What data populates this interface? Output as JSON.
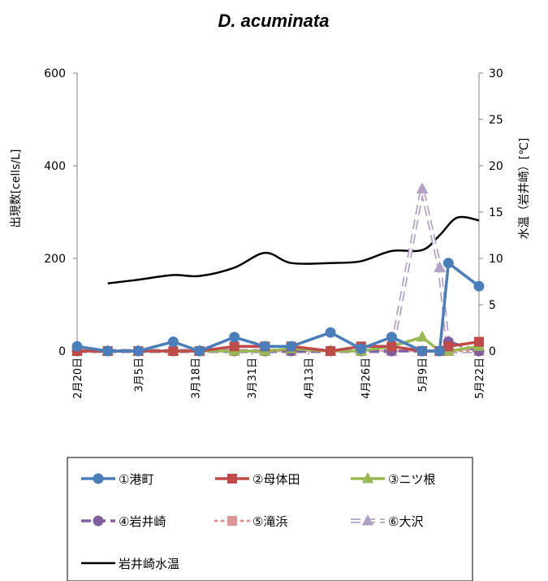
{
  "chart_data": {
    "type": "line",
    "title": "D. acuminata",
    "ylabel": "出現数[cells/L]",
    "y2label": "水温（岩井崎）[℃]",
    "ylim": [
      0,
      600
    ],
    "y2lim": [
      0,
      30
    ],
    "yticks": [
      0,
      200,
      400,
      600
    ],
    "y2ticks": [
      0,
      5,
      10,
      15,
      20,
      25,
      30
    ],
    "x_ticks": [
      {
        "label": "2月20日",
        "date": "2024-02-20"
      },
      {
        "label": "3月5日",
        "date": "2024-03-05"
      },
      {
        "label": "3月18日",
        "date": "2024-03-18"
      },
      {
        "label": "3月31日",
        "date": "2024-03-31"
      },
      {
        "label": "4月13日",
        "date": "2024-04-13"
      },
      {
        "label": "4月26日",
        "date": "2024-04-26"
      },
      {
        "label": "5月9日",
        "date": "2024-05-09"
      },
      {
        "label": "5月22日",
        "date": "2024-05-22"
      }
    ],
    "xlim": [
      "2024-02-20",
      "2024-05-22"
    ],
    "legend_position": "bottom",
    "series": [
      {
        "name": "①港町",
        "axis": "left",
        "color": "#4a7ebb",
        "marker": "circle",
        "dash": "solid",
        "width": 3.5,
        "points": [
          {
            "x": "2024-02-20",
            "y": 10
          },
          {
            "x": "2024-02-27",
            "y": 0
          },
          {
            "x": "2024-03-05",
            "y": 0
          },
          {
            "x": "2024-03-13",
            "y": 20
          },
          {
            "x": "2024-03-19",
            "y": 0
          },
          {
            "x": "2024-03-27",
            "y": 30
          },
          {
            "x": "2024-04-03",
            "y": 10
          },
          {
            "x": "2024-04-09",
            "y": 10
          },
          {
            "x": "2024-04-18",
            "y": 40
          },
          {
            "x": "2024-04-25",
            "y": 5
          },
          {
            "x": "2024-05-02",
            "y": 30
          },
          {
            "x": "2024-05-09",
            "y": 0
          },
          {
            "x": "2024-05-13",
            "y": 0
          },
          {
            "x": "2024-05-15",
            "y": 190
          },
          {
            "x": "2024-05-22",
            "y": 140
          }
        ]
      },
      {
        "name": "②母体田",
        "axis": "left",
        "color": "#be4b48",
        "marker": "square",
        "dash": "solid",
        "width": 3.5,
        "points": [
          {
            "x": "2024-02-20",
            "y": 0
          },
          {
            "x": "2024-02-27",
            "y": 0
          },
          {
            "x": "2024-03-05",
            "y": 0
          },
          {
            "x": "2024-03-13",
            "y": 0
          },
          {
            "x": "2024-03-19",
            "y": 0
          },
          {
            "x": "2024-03-27",
            "y": 10
          },
          {
            "x": "2024-04-03",
            "y": 10
          },
          {
            "x": "2024-04-09",
            "y": 10
          },
          {
            "x": "2024-04-18",
            "y": 0
          },
          {
            "x": "2024-04-25",
            "y": 10
          },
          {
            "x": "2024-05-02",
            "y": 10
          },
          {
            "x": "2024-05-09",
            "y": 0
          },
          {
            "x": "2024-05-13",
            "y": 0
          },
          {
            "x": "2024-05-15",
            "y": 10
          },
          {
            "x": "2024-05-22",
            "y": 20
          }
        ]
      },
      {
        "name": "③ニツ根",
        "axis": "left",
        "color": "#98b954",
        "marker": "triangle",
        "dash": "solid",
        "width": 3.5,
        "points": [
          {
            "x": "2024-02-20",
            "y": 0
          },
          {
            "x": "2024-02-27",
            "y": 0
          },
          {
            "x": "2024-03-05",
            "y": 0
          },
          {
            "x": "2024-03-13",
            "y": 0
          },
          {
            "x": "2024-03-19",
            "y": 0
          },
          {
            "x": "2024-03-27",
            "y": 0
          },
          {
            "x": "2024-04-03",
            "y": 0
          },
          {
            "x": "2024-04-09",
            "y": 5
          },
          {
            "x": "2024-04-18",
            "y": 0
          },
          {
            "x": "2024-04-25",
            "y": 0
          },
          {
            "x": "2024-05-02",
            "y": 10
          },
          {
            "x": "2024-05-09",
            "y": 30
          },
          {
            "x": "2024-05-13",
            "y": 0
          },
          {
            "x": "2024-05-15",
            "y": 0
          },
          {
            "x": "2024-05-22",
            "y": 10
          }
        ]
      },
      {
        "name": "④岩井崎",
        "axis": "left",
        "color": "#7d5fa0",
        "marker": "circle",
        "dash": "dash",
        "width": 3.5,
        "points": [
          {
            "x": "2024-02-20",
            "y": 0
          },
          {
            "x": "2024-02-27",
            "y": 0
          },
          {
            "x": "2024-03-05",
            "y": 0
          },
          {
            "x": "2024-03-13",
            "y": 0
          },
          {
            "x": "2024-03-19",
            "y": 0
          },
          {
            "x": "2024-03-27",
            "y": 0
          },
          {
            "x": "2024-04-03",
            "y": 0
          },
          {
            "x": "2024-04-09",
            "y": 0
          },
          {
            "x": "2024-04-18",
            "y": 0
          },
          {
            "x": "2024-04-25",
            "y": 0
          },
          {
            "x": "2024-05-02",
            "y": 0
          },
          {
            "x": "2024-05-09",
            "y": 0
          },
          {
            "x": "2024-05-13",
            "y": 0
          },
          {
            "x": "2024-05-15",
            "y": 20
          },
          {
            "x": "2024-05-22",
            "y": 0
          }
        ]
      },
      {
        "name": "⑤滝浜",
        "axis": "left",
        "color": "#d99694",
        "marker": "square",
        "dash": "dot",
        "width": 3,
        "points": [
          {
            "x": "2024-02-20",
            "y": 0
          },
          {
            "x": "2024-02-27",
            "y": 0
          },
          {
            "x": "2024-03-05",
            "y": 0
          },
          {
            "x": "2024-03-13",
            "y": 0
          },
          {
            "x": "2024-03-19",
            "y": 0
          },
          {
            "x": "2024-03-27",
            "y": 0
          },
          {
            "x": "2024-04-03",
            "y": 0
          },
          {
            "x": "2024-04-09",
            "y": 0
          },
          {
            "x": "2024-04-18",
            "y": 0
          },
          {
            "x": "2024-04-25",
            "y": 0
          },
          {
            "x": "2024-05-02",
            "y": 0
          },
          {
            "x": "2024-05-09",
            "y": 0
          },
          {
            "x": "2024-05-13",
            "y": 0
          },
          {
            "x": "2024-05-15",
            "y": 0
          },
          {
            "x": "2024-05-22",
            "y": 0
          }
        ]
      },
      {
        "name": "⑥大沢",
        "axis": "left",
        "color": "#b3a2c7",
        "marker": "triangle",
        "dash": "dash-open",
        "width": 3.5,
        "points": [
          {
            "x": "2024-02-20",
            "y": 0
          },
          {
            "x": "2024-02-27",
            "y": 0
          },
          {
            "x": "2024-03-05",
            "y": 0
          },
          {
            "x": "2024-03-13",
            "y": 0
          },
          {
            "x": "2024-03-19",
            "y": 0
          },
          {
            "x": "2024-03-27",
            "y": 0
          },
          {
            "x": "2024-04-03",
            "y": 0
          },
          {
            "x": "2024-04-09",
            "y": 0
          },
          {
            "x": "2024-04-18",
            "y": 0
          },
          {
            "x": "2024-04-25",
            "y": 0
          },
          {
            "x": "2024-05-02",
            "y": 0
          },
          {
            "x": "2024-05-09",
            "y": 350
          },
          {
            "x": "2024-05-13",
            "y": 180
          },
          {
            "x": "2024-05-15",
            "y": 0
          },
          {
            "x": "2024-05-22",
            "y": 0
          }
        ]
      },
      {
        "name": "岩井崎水温",
        "axis": "right",
        "color": "#000000",
        "marker": "none",
        "dash": "solid",
        "width": 2.5,
        "smooth": true,
        "points": [
          {
            "x": "2024-02-27",
            "y": 7.3
          },
          {
            "x": "2024-03-05",
            "y": 7.7
          },
          {
            "x": "2024-03-13",
            "y": 8.2
          },
          {
            "x": "2024-03-19",
            "y": 8.1
          },
          {
            "x": "2024-03-27",
            "y": 9.0
          },
          {
            "x": "2024-04-03",
            "y": 10.6
          },
          {
            "x": "2024-04-09",
            "y": 9.5
          },
          {
            "x": "2024-04-18",
            "y": 9.5
          },
          {
            "x": "2024-04-25",
            "y": 9.7
          },
          {
            "x": "2024-05-02",
            "y": 10.8
          },
          {
            "x": "2024-05-09",
            "y": 10.9
          },
          {
            "x": "2024-05-13",
            "y": 12.5
          },
          {
            "x": "2024-05-17",
            "y": 14.4
          },
          {
            "x": "2024-05-22",
            "y": 14.1
          }
        ]
      }
    ]
  }
}
